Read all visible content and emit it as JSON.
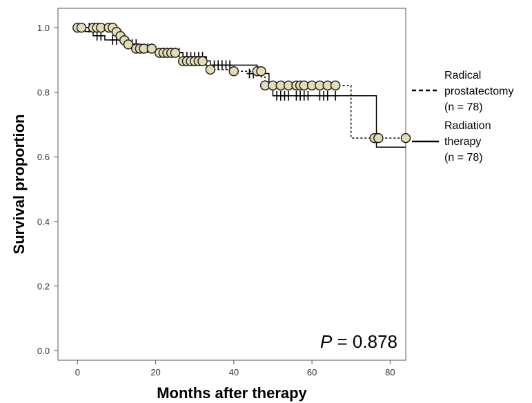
{
  "chart_data": {
    "type": "line",
    "subtype": "kaplan-meier",
    "xlabel": "Months after therapy",
    "ylabel": "Survival proportion",
    "xlim": [
      -5,
      84
    ],
    "ylim": [
      -0.03,
      1.06
    ],
    "xticks": [
      0,
      20,
      40,
      60,
      80
    ],
    "yticks": [
      0.0,
      0.2,
      0.4,
      0.6,
      0.8,
      1.0
    ],
    "xtick_labels": [
      "0",
      "20",
      "40",
      "60",
      "80"
    ],
    "ytick_labels": [
      "0.0",
      "0.2",
      "0.4",
      "0.6",
      "0.8",
      "1.0"
    ],
    "grid": false,
    "legend_position": "right",
    "annotation": {
      "p_label": "P",
      "p_rest": " = 0.878"
    },
    "series": [
      {
        "name_lines": [
          "Radical",
          "prostatectomy",
          "(n = 78)"
        ],
        "line_style": "dashed",
        "censor_marker": "circle",
        "marker_color": "#e3dcb4",
        "steps": [
          [
            0,
            1.0
          ],
          [
            9,
            0.987
          ],
          [
            10,
            0.974
          ],
          [
            11,
            0.961
          ],
          [
            12,
            0.948
          ],
          [
            14,
            0.935
          ],
          [
            20,
            0.922
          ],
          [
            27,
            0.909
          ],
          [
            28,
            0.896
          ],
          [
            33,
            0.883
          ],
          [
            34,
            0.87
          ],
          [
            39,
            0.865
          ],
          [
            47,
            0.847
          ],
          [
            48,
            0.821
          ],
          [
            70,
            0.658
          ],
          [
            84,
            0.658
          ]
        ],
        "censored": [
          [
            0,
            1.0
          ],
          [
            1,
            1.0
          ],
          [
            4,
            1.0
          ],
          [
            5,
            1.0
          ],
          [
            6,
            1.0
          ],
          [
            8,
            1.0
          ],
          [
            9,
            1.0
          ],
          [
            10,
            0.987
          ],
          [
            11,
            0.974
          ],
          [
            12,
            0.961
          ],
          [
            13,
            0.948
          ],
          [
            15,
            0.935
          ],
          [
            16,
            0.935
          ],
          [
            17,
            0.935
          ],
          [
            19,
            0.935
          ],
          [
            21,
            0.922
          ],
          [
            22,
            0.922
          ],
          [
            23,
            0.922
          ],
          [
            24,
            0.922
          ],
          [
            25,
            0.922
          ],
          [
            27,
            0.896
          ],
          [
            28,
            0.896
          ],
          [
            29,
            0.896
          ],
          [
            30,
            0.896
          ],
          [
            31,
            0.896
          ],
          [
            32,
            0.896
          ],
          [
            34,
            0.87
          ],
          [
            40,
            0.865
          ],
          [
            46,
            0.865
          ],
          [
            47,
            0.865
          ],
          [
            48,
            0.821
          ],
          [
            50,
            0.821
          ],
          [
            52,
            0.821
          ],
          [
            54,
            0.821
          ],
          [
            56,
            0.821
          ],
          [
            57,
            0.821
          ],
          [
            58,
            0.821
          ],
          [
            60,
            0.821
          ],
          [
            62,
            0.821
          ],
          [
            64,
            0.821
          ],
          [
            66,
            0.821
          ],
          [
            76,
            0.658
          ],
          [
            77,
            0.658
          ],
          [
            84,
            0.658
          ]
        ]
      },
      {
        "name_lines": [
          "Radiation",
          "therapy",
          "(n = 78)"
        ],
        "line_style": "solid",
        "censor_marker": "tick",
        "steps": [
          [
            0,
            1.0
          ],
          [
            2,
            0.988
          ],
          [
            4,
            0.975
          ],
          [
            7,
            0.962
          ],
          [
            13,
            0.949
          ],
          [
            16,
            0.936
          ],
          [
            20,
            0.923
          ],
          [
            27,
            0.91
          ],
          [
            33,
            0.897
          ],
          [
            34,
            0.884
          ],
          [
            46,
            0.858
          ],
          [
            49,
            0.827
          ],
          [
            50,
            0.789
          ],
          [
            76.5,
            0.63
          ],
          [
            84,
            0.63
          ]
        ],
        "censored": [
          [
            3,
            1.0
          ],
          [
            5,
            0.975
          ],
          [
            6,
            0.975
          ],
          [
            9,
            0.962
          ],
          [
            10,
            0.962
          ],
          [
            14,
            0.949
          ],
          [
            15,
            0.949
          ],
          [
            18,
            0.936
          ],
          [
            19,
            0.936
          ],
          [
            22,
            0.923
          ],
          [
            23,
            0.923
          ],
          [
            24,
            0.923
          ],
          [
            25,
            0.923
          ],
          [
            26,
            0.923
          ],
          [
            28,
            0.91
          ],
          [
            29,
            0.91
          ],
          [
            30,
            0.91
          ],
          [
            31,
            0.91
          ],
          [
            32,
            0.91
          ],
          [
            35,
            0.884
          ],
          [
            36,
            0.884
          ],
          [
            37,
            0.884
          ],
          [
            38,
            0.884
          ],
          [
            39,
            0.884
          ],
          [
            44,
            0.858
          ],
          [
            45,
            0.858
          ],
          [
            51,
            0.789
          ],
          [
            52,
            0.789
          ],
          [
            53,
            0.789
          ],
          [
            54,
            0.789
          ],
          [
            56,
            0.789
          ],
          [
            57,
            0.789
          ],
          [
            58,
            0.789
          ],
          [
            59,
            0.789
          ],
          [
            62,
            0.789
          ],
          [
            63,
            0.789
          ],
          [
            64,
            0.789
          ],
          [
            66,
            0.789
          ]
        ]
      }
    ]
  }
}
